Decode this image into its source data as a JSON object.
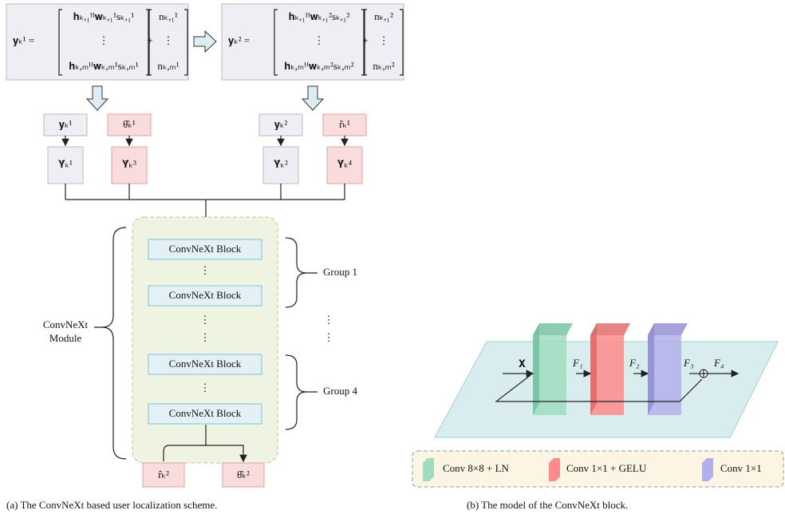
{
  "panel_a": {
    "eq1": {
      "lhs": "𝐲ₖ¹ =",
      "rows": [
        "𝐡ₖ,₁ᴴ𝐰ₖ,₁¹sₖ,₁¹",
        "⋮",
        "𝐡ₖ,ₘᴴ𝐰ₖ,ₘ¹sₖ,ₘ¹"
      ],
      "plus": "+",
      "noise": [
        "nₖ,₁¹",
        "⋮",
        "nₖ,ₘ¹"
      ]
    },
    "eq2": {
      "lhs": "𝐲ₖ² =",
      "rows": [
        "𝐡ₖ,₁ᴴ𝐰ₖ,₁²sₖ,₁²",
        "⋮",
        "𝐡ₖ,ₘᴴ𝐰ₖ,ₘ²sₖ,ₘ²"
      ],
      "plus": "+",
      "noise": [
        "nₖ,₁²",
        "⋮",
        "nₖ,ₘ²"
      ]
    },
    "inputs": [
      "𝐲ₖ¹",
      "θ̂ₖ¹",
      "𝐲ₖ²",
      "r̂ₖ¹"
    ],
    "tensors": [
      "𝐘̄ₖ¹",
      "𝐘̄ₖ³",
      "𝐘̄ₖ²",
      "𝐘̄ₖ⁴"
    ],
    "blocks": [
      "ConvNeXt Block",
      "ConvNeXt Block",
      "ConvNeXt Block",
      "ConvNeXt Block"
    ],
    "groups": [
      "Group 1",
      "Group 4"
    ],
    "module": [
      "ConvNeXt",
      "Module"
    ],
    "outputs": [
      "r̂ₖ²",
      "θ̂ₖ²"
    ],
    "caption": "(a) The ConvNeXt based user localization scheme."
  },
  "panel_b": {
    "labels": [
      "𝐗",
      "F₁",
      "F₂",
      "F₃",
      "F₄"
    ],
    "legend": [
      "Conv 8×8 + LN",
      "Conv 1×1 + GELU",
      "Conv 1×1"
    ],
    "caption": "(b) The model of the ConvNeXt block."
  }
}
